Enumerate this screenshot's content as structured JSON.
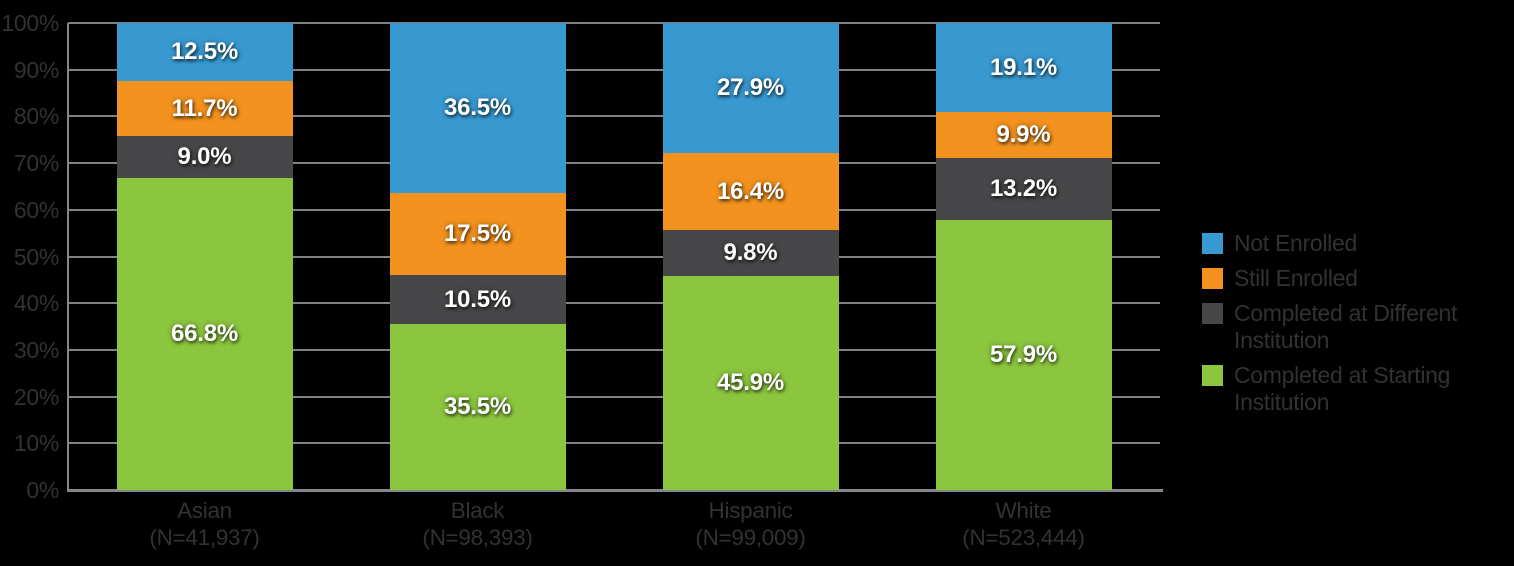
{
  "canvas": {
    "background": "#000000",
    "text_color": "#323235",
    "grid_color": "#808285",
    "axis_color": "#85878a"
  },
  "chart_data": {
    "type": "bar",
    "stacked": true,
    "title": "",
    "xlabel": "",
    "ylabel": "",
    "ylim": [
      0,
      100
    ],
    "grid": true,
    "legend_position": "right",
    "categories": [
      "Asian",
      "Black",
      "Hispanic",
      "White"
    ],
    "category_sublabels": [
      "(N=41,937)",
      "(N=98,393)",
      "(N=99,009)",
      "(N=523,444)"
    ],
    "yticks": [
      0,
      10,
      20,
      30,
      40,
      50,
      60,
      70,
      80,
      90,
      100
    ],
    "ytick_labels": [
      "0%",
      "10%",
      "20%",
      "30%",
      "40%",
      "50%",
      "60%",
      "70%",
      "80%",
      "90%",
      "100%"
    ],
    "series": [
      {
        "name": "Completed at Starting Institution",
        "color": "#8CC63F",
        "values": [
          66.8,
          35.5,
          45.9,
          57.9
        ],
        "labels": [
          "66.8%",
          "35.5%",
          "45.9%",
          "57.9%"
        ]
      },
      {
        "name": "Completed at Different Institution",
        "color": "#474749",
        "values": [
          9.0,
          10.5,
          9.8,
          13.2
        ],
        "labels": [
          "9.0%",
          "10.5%",
          "9.8%",
          "13.2%"
        ]
      },
      {
        "name": "Still Enrolled",
        "color": "#F3921F",
        "values": [
          11.7,
          17.5,
          16.4,
          9.9
        ],
        "labels": [
          "11.7%",
          "17.5%",
          "16.4%",
          "9.9%"
        ]
      },
      {
        "name": "Not Enrolled",
        "color": "#3899D1",
        "values": [
          12.5,
          36.5,
          27.9,
          19.1
        ],
        "labels": [
          "12.5%",
          "36.5%",
          "27.9%",
          "19.1%"
        ]
      }
    ],
    "legend": [
      {
        "label": "Not Enrolled",
        "color": "#3899D1"
      },
      {
        "label": "Still Enrolled",
        "color": "#F3921F"
      },
      {
        "label": "Completed at Different Institution",
        "color": "#474749"
      },
      {
        "label": "Completed at Starting Institution",
        "color": "#8CC63F"
      }
    ]
  }
}
